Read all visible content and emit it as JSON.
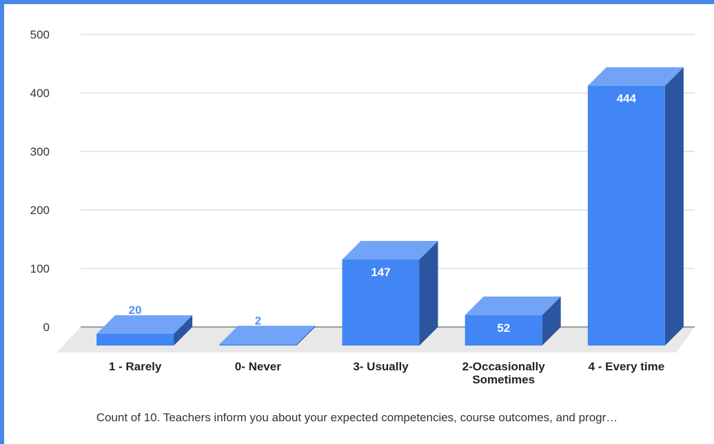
{
  "chart_data": {
    "type": "bar3d",
    "categories": [
      "1 - Rarely",
      "0- Never",
      "3- Usually",
      "2-Occasionally Sometimes",
      "4 - Every time"
    ],
    "values": [
      20,
      2,
      147,
      52,
      444
    ],
    "color": "#4285f4",
    "ylim": [
      0,
      500
    ],
    "yticks": [
      0,
      100,
      200,
      300,
      400,
      500
    ],
    "grid": true,
    "x_label": "Count of 10. Teachers inform you about your expected competencies, course outcomes, and progr…"
  }
}
